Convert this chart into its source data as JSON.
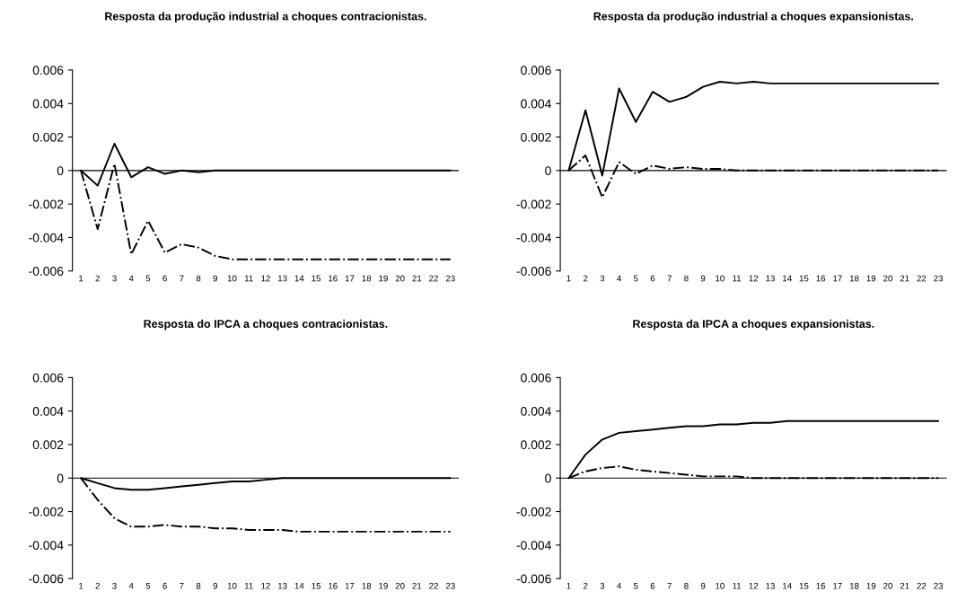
{
  "chart_data": [
    {
      "type": "line",
      "title": "Resposta da produção industrial a choques contracionistas.",
      "categories": [
        "1",
        "2",
        "3",
        "4",
        "5",
        "6",
        "7",
        "8",
        "9",
        "10",
        "11",
        "12",
        "13",
        "14",
        "15",
        "16",
        "17",
        "18",
        "19",
        "20",
        "21",
        "22",
        "23"
      ],
      "ylim": [
        -0.006,
        0.006
      ],
      "yticks": [
        -0.006,
        -0.004,
        -0.002,
        0,
        0.002,
        0.004,
        0.006
      ],
      "legend": false,
      "ref_lines": [
        {
          "axis": "y",
          "value": 0,
          "color": "#000000"
        }
      ],
      "series": [
        {
          "color": "#000000",
          "line_style": "solid",
          "values": [
            0,
            -0.0009,
            0.0016,
            -0.0004,
            0.0002,
            -0.0002,
            0,
            -0.0001,
            0,
            0,
            0,
            0,
            0,
            0,
            0,
            0,
            0,
            0,
            0,
            0,
            0,
            0,
            0
          ]
        },
        {
          "color": "#000000",
          "line_style": "dashdot",
          "values": [
            0,
            -0.0035,
            0.0004,
            -0.005,
            -0.003,
            -0.0049,
            -0.0044,
            -0.0046,
            -0.0051,
            -0.0053,
            -0.0053,
            -0.0053,
            -0.0053,
            -0.0053,
            -0.0053,
            -0.0053,
            -0.0053,
            -0.0053,
            -0.0053,
            -0.0053,
            -0.0053,
            -0.0053,
            -0.0053
          ]
        }
      ]
    },
    {
      "type": "line",
      "title": "Resposta da produção industrial a choques expansionistas.",
      "categories": [
        "1",
        "2",
        "3",
        "4",
        "5",
        "6",
        "7",
        "8",
        "9",
        "10",
        "11",
        "12",
        "13",
        "14",
        "15",
        "16",
        "17",
        "18",
        "19",
        "20",
        "21",
        "22",
        "23"
      ],
      "ylim": [
        -0.006,
        0.006
      ],
      "yticks": [
        -0.006,
        -0.004,
        -0.002,
        0,
        0.002,
        0.004,
        0.006
      ],
      "legend": false,
      "ref_lines": [
        {
          "axis": "y",
          "value": 0,
          "color": "#000000"
        }
      ],
      "series": [
        {
          "color": "#000000",
          "line_style": "solid",
          "values": [
            0,
            0.0036,
            -0.0003,
            0.0049,
            0.0029,
            0.0047,
            0.0041,
            0.0044,
            0.005,
            0.0053,
            0.0052,
            0.0053,
            0.0052,
            0.0052,
            0.0052,
            0.0052,
            0.0052,
            0.0052,
            0.0052,
            0.0052,
            0.0052,
            0.0052,
            0.0052
          ]
        },
        {
          "color": "#000000",
          "line_style": "dashdot",
          "values": [
            0,
            0.0009,
            -0.0016,
            0.0005,
            -0.0002,
            0.0003,
            0.0001,
            0.0002,
            0.0001,
            0.0001,
            0,
            0,
            0,
            0,
            0,
            0,
            0,
            0,
            0,
            0,
            0,
            0,
            0
          ]
        }
      ]
    },
    {
      "type": "line",
      "title": "Resposta do IPCA a choques contracionistas.",
      "categories": [
        "1",
        "2",
        "3",
        "4",
        "5",
        "6",
        "7",
        "8",
        "9",
        "10",
        "11",
        "12",
        "13",
        "14",
        "15",
        "16",
        "17",
        "18",
        "19",
        "20",
        "21",
        "22",
        "23"
      ],
      "ylim": [
        -0.006,
        0.006
      ],
      "yticks": [
        -0.006,
        -0.004,
        -0.002,
        0,
        0.002,
        0.004,
        0.006
      ],
      "legend": false,
      "ref_lines": [
        {
          "axis": "y",
          "value": 0,
          "color": "#000000"
        }
      ],
      "series": [
        {
          "color": "#000000",
          "line_style": "solid",
          "values": [
            0,
            -0.0003,
            -0.0006,
            -0.0007,
            -0.0007,
            -0.0006,
            -0.0005,
            -0.0004,
            -0.0003,
            -0.0002,
            -0.0002,
            -0.0001,
            0,
            0,
            0,
            0,
            0,
            0,
            0,
            0,
            0,
            0,
            0
          ]
        },
        {
          "color": "#000000",
          "line_style": "dashdot",
          "values": [
            0,
            -0.0013,
            -0.0024,
            -0.0029,
            -0.0029,
            -0.0028,
            -0.0029,
            -0.0029,
            -0.003,
            -0.003,
            -0.0031,
            -0.0031,
            -0.0031,
            -0.0032,
            -0.0032,
            -0.0032,
            -0.0032,
            -0.0032,
            -0.0032,
            -0.0032,
            -0.0032,
            -0.0032,
            -0.0032
          ]
        }
      ]
    },
    {
      "type": "line",
      "title": "Resposta da IPCA a choques expansionistas.",
      "categories": [
        "1",
        "2",
        "3",
        "4",
        "5",
        "6",
        "7",
        "8",
        "9",
        "10",
        "11",
        "12",
        "13",
        "14",
        "15",
        "16",
        "17",
        "18",
        "19",
        "20",
        "21",
        "22",
        "23"
      ],
      "ylim": [
        -0.006,
        0.006
      ],
      "yticks": [
        -0.006,
        -0.004,
        -0.002,
        0,
        0.002,
        0.004,
        0.006
      ],
      "legend": false,
      "ref_lines": [
        {
          "axis": "y",
          "value": 0,
          "color": "#000000"
        }
      ],
      "series": [
        {
          "color": "#000000",
          "line_style": "solid",
          "values": [
            0,
            0.0014,
            0.0023,
            0.0027,
            0.0028,
            0.0029,
            0.003,
            0.0031,
            0.0031,
            0.0032,
            0.0032,
            0.0033,
            0.0033,
            0.0034,
            0.0034,
            0.0034,
            0.0034,
            0.0034,
            0.0034,
            0.0034,
            0.0034,
            0.0034,
            0.0034
          ]
        },
        {
          "color": "#000000",
          "line_style": "dashdot",
          "values": [
            0,
            0.0004,
            0.0006,
            0.0007,
            0.0005,
            0.0004,
            0.0003,
            0.0002,
            0.0001,
            0.0001,
            0.0001,
            0,
            0,
            0,
            0,
            0,
            0,
            0,
            0,
            0,
            0,
            0,
            0
          ]
        }
      ]
    }
  ]
}
